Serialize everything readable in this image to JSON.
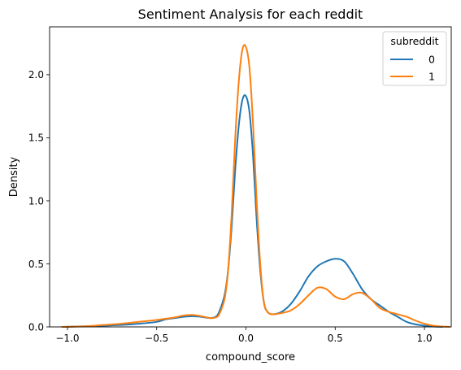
{
  "chart_data": {
    "type": "line",
    "title": "Sentiment Analysis for each reddit",
    "xlabel": "compound_score",
    "ylabel": "Density",
    "xlim": [
      -1.1,
      1.15
    ],
    "ylim": [
      0,
      2.38
    ],
    "grid": false,
    "x_ticks": [
      -1.0,
      -0.5,
      0.0,
      0.5,
      1.0
    ],
    "x_tick_labels": [
      "−1.0",
      "−0.5",
      "0.0",
      "0.5",
      "1.0"
    ],
    "y_ticks": [
      0.0,
      0.5,
      1.0,
      1.5,
      2.0
    ],
    "y_tick_labels": [
      "0.0",
      "0.5",
      "1.0",
      "1.5",
      "2.0"
    ],
    "legend": {
      "title": "subreddit",
      "placement": "top-right",
      "entries": [
        "0",
        "1"
      ]
    },
    "series": [
      {
        "name": "0",
        "color": "#1f77b4",
        "x": [
          -1.02,
          -0.9,
          -0.8,
          -0.7,
          -0.6,
          -0.5,
          -0.45,
          -0.4,
          -0.35,
          -0.3,
          -0.25,
          -0.2,
          -0.17,
          -0.15,
          -0.12,
          -0.1,
          -0.08,
          -0.06,
          -0.04,
          -0.02,
          0.0,
          0.02,
          0.04,
          0.06,
          0.08,
          0.1,
          0.12,
          0.15,
          0.2,
          0.25,
          0.3,
          0.35,
          0.4,
          0.45,
          0.5,
          0.55,
          0.6,
          0.65,
          0.7,
          0.75,
          0.8,
          0.85,
          0.9,
          0.95,
          1.0,
          1.05,
          1.1
        ],
        "values": [
          0.0,
          0.005,
          0.01,
          0.015,
          0.025,
          0.04,
          0.06,
          0.07,
          0.08,
          0.085,
          0.08,
          0.07,
          0.08,
          0.12,
          0.25,
          0.45,
          0.8,
          1.25,
          1.6,
          1.8,
          1.83,
          1.7,
          1.35,
          0.85,
          0.45,
          0.2,
          0.12,
          0.1,
          0.12,
          0.18,
          0.28,
          0.4,
          0.48,
          0.52,
          0.54,
          0.52,
          0.42,
          0.3,
          0.22,
          0.17,
          0.12,
          0.08,
          0.04,
          0.02,
          0.01,
          0.003,
          0.0
        ]
      },
      {
        "name": "1",
        "color": "#ff7f0e",
        "x": [
          -1.03,
          -0.9,
          -0.8,
          -0.7,
          -0.6,
          -0.5,
          -0.45,
          -0.4,
          -0.35,
          -0.3,
          -0.25,
          -0.2,
          -0.17,
          -0.15,
          -0.12,
          -0.1,
          -0.08,
          -0.06,
          -0.04,
          -0.02,
          0.0,
          0.02,
          0.04,
          0.06,
          0.08,
          0.1,
          0.12,
          0.15,
          0.2,
          0.25,
          0.3,
          0.35,
          0.4,
          0.45,
          0.5,
          0.55,
          0.6,
          0.65,
          0.7,
          0.75,
          0.8,
          0.85,
          0.9,
          0.95,
          1.0,
          1.05,
          1.1,
          1.14
        ],
        "values": [
          0.0,
          0.005,
          0.015,
          0.025,
          0.04,
          0.055,
          0.065,
          0.075,
          0.09,
          0.095,
          0.085,
          0.07,
          0.075,
          0.1,
          0.22,
          0.45,
          0.9,
          1.5,
          1.95,
          2.2,
          2.22,
          2.05,
          1.6,
          1.0,
          0.5,
          0.2,
          0.12,
          0.1,
          0.11,
          0.13,
          0.18,
          0.25,
          0.31,
          0.3,
          0.24,
          0.22,
          0.26,
          0.27,
          0.22,
          0.15,
          0.12,
          0.1,
          0.08,
          0.05,
          0.025,
          0.01,
          0.003,
          0.0
        ]
      }
    ]
  }
}
